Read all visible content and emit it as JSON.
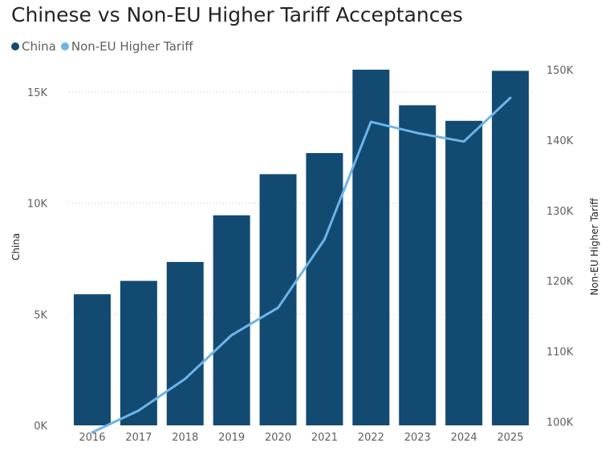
{
  "title": "Chinese vs Non-EU Higher Tariff Acceptances",
  "legend": [
    {
      "label": "China",
      "color": "#124A72"
    },
    {
      "label": "Non-EU Higher Tariff",
      "color": "#6CB4E8"
    }
  ],
  "chart_data": {
    "type": "bar",
    "title": "Chinese vs Non-EU Higher Tariff Acceptances",
    "categories": [
      "2016",
      "2017",
      "2018",
      "2019",
      "2020",
      "2021",
      "2022",
      "2023",
      "2024",
      "2025"
    ],
    "series": [
      {
        "name": "China",
        "type": "bar",
        "axis": "left",
        "color": "#124A72",
        "values": [
          5900,
          6500,
          7350,
          9450,
          11300,
          12250,
          16000,
          14400,
          13700,
          15950
        ]
      },
      {
        "name": "Non-EU Higher Tariff",
        "type": "line",
        "axis": "right",
        "color": "#6CB4E8",
        "values": [
          98500,
          101600,
          106100,
          112300,
          116200,
          125900,
          142600,
          141000,
          139800,
          146000
        ]
      }
    ],
    "ylabel": "China",
    "ylabel_right": "Non-EU Higher Tariff",
    "ylim": [
      0,
      16000
    ],
    "ylim_right": [
      95000,
      150000
    ],
    "yticks": [
      {
        "value": 0,
        "label": "0K"
      },
      {
        "value": 5000,
        "label": "5K"
      },
      {
        "value": 10000,
        "label": "10K"
      },
      {
        "value": 15000,
        "label": "15K"
      }
    ],
    "yticks_right": [
      {
        "value": 100000,
        "label": "100K"
      },
      {
        "value": 110000,
        "label": "110K"
      },
      {
        "value": 120000,
        "label": "120K"
      },
      {
        "value": 130000,
        "label": "130K"
      },
      {
        "value": 140000,
        "label": "140K"
      },
      {
        "value": 150000,
        "label": "150K"
      }
    ],
    "grid": true,
    "legend_position": "top-left"
  }
}
